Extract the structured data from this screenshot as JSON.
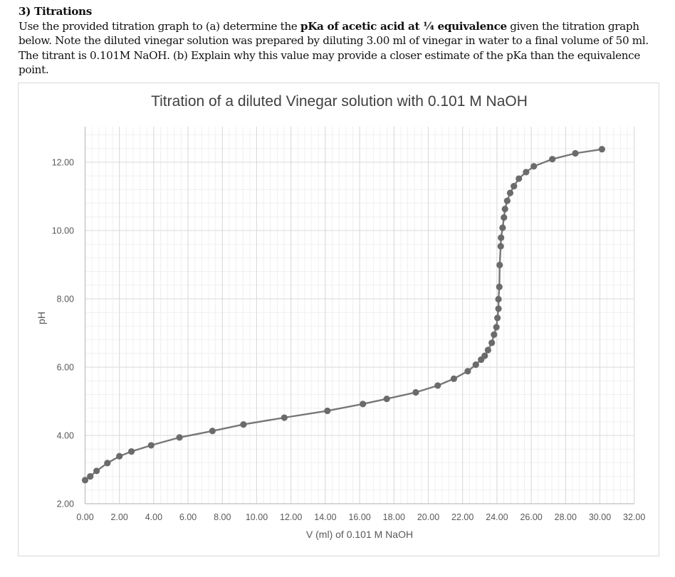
{
  "question": {
    "heading": "3) Titrations",
    "text_parts": [
      "Use the provided titration graph to (a)  determine the ",
      "pKa of acetic acid at ¼ equivalence",
      " given the titration graph below.  Note the diluted vinegar solution was prepared by diluting 3.00 ml of vinegar in  water to a final volume of 50 ml.   The titrant is 0.101M NaOH.  (b) Explain why this value may provide a closer estimate of the pKa than the equivalence point."
    ]
  },
  "colors": {
    "series": "#6b6b6b",
    "line": "#777777",
    "major_grid": "#d9d9d9",
    "minor_grid": "#f0f0f0",
    "text": "#595959"
  },
  "chart_data": {
    "type": "scatter",
    "mode": "lines+markers",
    "title": "Titration of a diluted Vinegar solution  with 0.101 M NaOH",
    "xlabel": "V (ml) of 0.101 M NaOH",
    "ylabel": "pH",
    "xlim": [
      0,
      32
    ],
    "ylim": [
      2,
      13
    ],
    "x_ticks": [
      "0.00",
      "2.00",
      "4.00",
      "6.00",
      "8.00",
      "10.00",
      "12.00",
      "14.00",
      "16.00",
      "18.00",
      "20.00",
      "22.00",
      "24.00",
      "26.00",
      "28.00",
      "30.00",
      "32.00"
    ],
    "y_ticks": [
      "2.00",
      "4.00",
      "6.00",
      "8.00",
      "10.00",
      "12.00"
    ],
    "grid": {
      "major": true,
      "minor": true,
      "x_minor_step": 0.4,
      "y_minor_step": 0.4
    },
    "legend": "none",
    "series": [
      {
        "name": "pH",
        "x": [
          0.0,
          0.3,
          0.67,
          1.3,
          2.0,
          2.7,
          3.85,
          5.5,
          7.42,
          9.23,
          11.61,
          14.12,
          16.19,
          17.58,
          19.27,
          20.55,
          21.49,
          22.3,
          22.77,
          23.08,
          23.29,
          23.48,
          23.7,
          23.83,
          23.97,
          24.03,
          24.09,
          24.09,
          24.14,
          24.16,
          24.22,
          24.24,
          24.33,
          24.41,
          24.47,
          24.6,
          24.77,
          24.99,
          25.28,
          25.7,
          26.15,
          27.23,
          28.57,
          30.12
        ],
        "y": [
          2.69,
          2.8,
          2.96,
          3.19,
          3.39,
          3.53,
          3.71,
          3.94,
          4.13,
          4.32,
          4.52,
          4.72,
          4.92,
          5.07,
          5.26,
          5.46,
          5.66,
          5.88,
          6.07,
          6.22,
          6.33,
          6.5,
          6.71,
          6.95,
          7.17,
          7.44,
          7.71,
          7.99,
          8.35,
          8.99,
          9.54,
          9.79,
          10.08,
          10.38,
          10.63,
          10.87,
          11.1,
          11.3,
          11.52,
          11.71,
          11.88,
          12.09,
          12.26,
          12.38
        ]
      }
    ]
  }
}
